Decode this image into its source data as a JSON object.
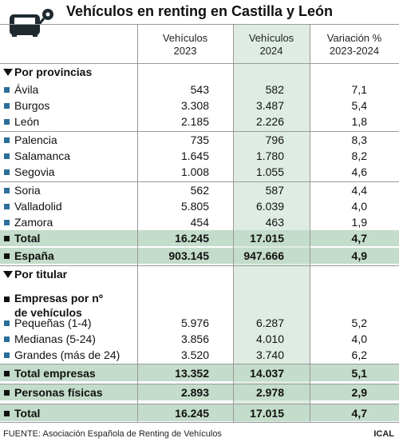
{
  "title": "Vehículos en renting en Castilla y León",
  "columns": [
    "Vehículos\n2023",
    "Vehículos\n2024",
    "Variación %\n2023-2024"
  ],
  "provinces": {
    "heading": "Por provincias",
    "rows": [
      {
        "label": "Ávila",
        "values": [
          "543",
          "582",
          "7,1"
        ]
      },
      {
        "label": "Burgos",
        "values": [
          "3.308",
          "3.487",
          "5,4"
        ]
      },
      {
        "label": "León",
        "values": [
          "2.185",
          "2.226",
          "1,8"
        ]
      },
      {
        "label": "Palencia",
        "values": [
          "735",
          "796",
          "8,3"
        ]
      },
      {
        "label": "Salamanca",
        "values": [
          "1.645",
          "1.780",
          "8,2"
        ]
      },
      {
        "label": "Segovia",
        "values": [
          "1.008",
          "1.055",
          "4,6"
        ]
      },
      {
        "label": "Soria",
        "values": [
          "562",
          "587",
          "4,4"
        ]
      },
      {
        "label": "Valladolid",
        "values": [
          "5.805",
          "6.039",
          "4,0"
        ]
      },
      {
        "label": "Zamora",
        "values": [
          "454",
          "463",
          "1,9"
        ]
      }
    ],
    "total": {
      "label": "Total",
      "values": [
        "16.245",
        "17.015",
        "4,7"
      ]
    },
    "spain": {
      "label": "España",
      "values": [
        "903.145",
        "947.666",
        "4,9"
      ]
    }
  },
  "holders": {
    "heading": "Por titular",
    "companies_heading": "Empresas por nº\nde vehículos",
    "rows": [
      {
        "label": "Pequeñas (1-4)",
        "values": [
          "5.976",
          "6.287",
          "5,2"
        ]
      },
      {
        "label": "Medianas (5-24)",
        "values": [
          "3.856",
          "4.010",
          "4,0"
        ]
      },
      {
        "label": "Grandes (más de 24)",
        "values": [
          "3.520",
          "3.740",
          "6,2"
        ]
      }
    ],
    "total_companies": {
      "label": "Total empresas",
      "values": [
        "13.352",
        "14.037",
        "5,1"
      ]
    },
    "individuals": {
      "label": "Personas físicas",
      "values": [
        "2.893",
        "2.978",
        "2,9"
      ]
    },
    "total": {
      "label": "Total",
      "values": [
        "16.245",
        "17.015",
        "4,7"
      ]
    }
  },
  "footer": {
    "source": "FUENTE: Asociación Española de Renting de Vehículos",
    "brand": "ICAL"
  }
}
